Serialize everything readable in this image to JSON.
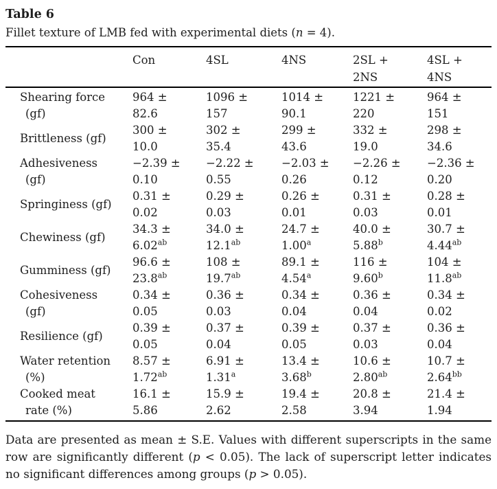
{
  "colors": {
    "background": "#ffffff",
    "text": "#1e1e1e",
    "rule": "#000000"
  },
  "title": "Table 6",
  "caption": {
    "before": "Fillet texture of LMB fed with experimental diets (",
    "variable": "n",
    "after": " = 4)."
  },
  "table": {
    "header_columns": [
      {
        "lines": [
          "Con"
        ]
      },
      {
        "lines": [
          "4SL"
        ]
      },
      {
        "lines": [
          "4NS"
        ]
      },
      {
        "lines": [
          "2SL +",
          "2NS"
        ]
      },
      {
        "lines": [
          "4SL +",
          "4NS"
        ]
      }
    ],
    "rows": [
      {
        "label_lines": [
          "Shearing force",
          "(gf)"
        ],
        "cells": [
          {
            "mean": "964 ±",
            "se": "82.6",
            "sup": ""
          },
          {
            "mean": "1096 ±",
            "se": "157",
            "sup": ""
          },
          {
            "mean": "1014 ±",
            "se": "90.1",
            "sup": ""
          },
          {
            "mean": "1221 ±",
            "se": "220",
            "sup": ""
          },
          {
            "mean": "964 ±",
            "se": "151",
            "sup": ""
          }
        ]
      },
      {
        "label_lines": [
          "Brittleness (gf)"
        ],
        "cells": [
          {
            "mean": "300 ±",
            "se": "10.0",
            "sup": ""
          },
          {
            "mean": "302 ±",
            "se": "35.4",
            "sup": ""
          },
          {
            "mean": "299 ±",
            "se": "43.6",
            "sup": ""
          },
          {
            "mean": "332 ±",
            "se": "19.0",
            "sup": ""
          },
          {
            "mean": "298 ±",
            "se": "34.6",
            "sup": ""
          }
        ]
      },
      {
        "label_lines": [
          "Adhesiveness",
          "(gf)"
        ],
        "cells": [
          {
            "mean": "−2.39 ±",
            "se": "0.10",
            "sup": ""
          },
          {
            "mean": "−2.22 ±",
            "se": "0.55",
            "sup": ""
          },
          {
            "mean": "−2.03 ±",
            "se": "0.26",
            "sup": ""
          },
          {
            "mean": "−2.26 ±",
            "se": "0.12",
            "sup": ""
          },
          {
            "mean": "−2.36 ±",
            "se": "0.20",
            "sup": ""
          }
        ]
      },
      {
        "label_lines": [
          "Springiness (gf)"
        ],
        "cells": [
          {
            "mean": "0.31 ±",
            "se": "0.02",
            "sup": ""
          },
          {
            "mean": "0.29 ±",
            "se": "0.03",
            "sup": ""
          },
          {
            "mean": "0.26 ±",
            "se": "0.01",
            "sup": ""
          },
          {
            "mean": "0.31 ±",
            "se": "0.03",
            "sup": ""
          },
          {
            "mean": "0.28 ±",
            "se": "0.01",
            "sup": ""
          }
        ]
      },
      {
        "label_lines": [
          "Chewiness (gf)"
        ],
        "cells": [
          {
            "mean": "34.3 ±",
            "se": "6.02",
            "sup": "ab"
          },
          {
            "mean": "34.0 ±",
            "se": "12.1",
            "sup": "ab"
          },
          {
            "mean": "24.7 ±",
            "se": "1.00",
            "sup": "a"
          },
          {
            "mean": "40.0 ±",
            "se": "5.88",
            "sup": "b"
          },
          {
            "mean": "30.7 ±",
            "se": "4.44",
            "sup": "ab"
          }
        ]
      },
      {
        "label_lines": [
          "Gumminess (gf)"
        ],
        "cells": [
          {
            "mean": "96.6 ±",
            "se": "23.8",
            "sup": "ab"
          },
          {
            "mean": "108 ±",
            "se": "19.7",
            "sup": "ab"
          },
          {
            "mean": "89.1 ±",
            "se": "4.54",
            "sup": "a"
          },
          {
            "mean": "116 ±",
            "se": "9.60",
            "sup": "b"
          },
          {
            "mean": "104 ±",
            "se": "11.8",
            "sup": "ab"
          }
        ]
      },
      {
        "label_lines": [
          "Cohesiveness",
          "(gf)"
        ],
        "cells": [
          {
            "mean": "0.34 ±",
            "se": "0.05",
            "sup": ""
          },
          {
            "mean": "0.36 ±",
            "se": "0.03",
            "sup": ""
          },
          {
            "mean": "0.34 ±",
            "se": "0.04",
            "sup": ""
          },
          {
            "mean": "0.36 ±",
            "se": "0.04",
            "sup": ""
          },
          {
            "mean": "0.34 ±",
            "se": "0.02",
            "sup": ""
          }
        ]
      },
      {
        "label_lines": [
          "Resilience (gf)"
        ],
        "cells": [
          {
            "mean": "0.39 ±",
            "se": "0.05",
            "sup": ""
          },
          {
            "mean": "0.37 ±",
            "se": "0.04",
            "sup": ""
          },
          {
            "mean": "0.39 ±",
            "se": "0.05",
            "sup": ""
          },
          {
            "mean": "0.37 ±",
            "se": "0.03",
            "sup": ""
          },
          {
            "mean": "0.36 ±",
            "se": "0.04",
            "sup": ""
          }
        ]
      },
      {
        "label_lines": [
          "Water retention",
          "(%)"
        ],
        "cells": [
          {
            "mean": "8.57 ±",
            "se": "1.72",
            "sup": "ab"
          },
          {
            "mean": "6.91 ±",
            "se": "1.31",
            "sup": "a"
          },
          {
            "mean": "13.4 ±",
            "se": "3.68",
            "sup": "b"
          },
          {
            "mean": "10.6 ±",
            "se": "2.80",
            "sup": "ab"
          },
          {
            "mean": "10.7 ±",
            "se": "2.64",
            "sup": "bb"
          }
        ]
      },
      {
        "label_lines": [
          "Cooked meat",
          "rate (%)"
        ],
        "cells": [
          {
            "mean": "16.1 ±",
            "se": "5.86",
            "sup": ""
          },
          {
            "mean": "15.9 ±",
            "se": "2.62",
            "sup": ""
          },
          {
            "mean": "19.4 ±",
            "se": "2.58",
            "sup": ""
          },
          {
            "mean": "20.8 ±",
            "se": "3.94",
            "sup": ""
          },
          {
            "mean": "21.4 ±",
            "se": "1.94",
            "sup": ""
          }
        ]
      }
    ]
  },
  "footnote": {
    "lines": [
      [
        {
          "text": "Data are presented as mean ± S.E. Values with different superscripts in the same",
          "italic": false
        }
      ],
      [
        {
          "text": "row are significantly different (",
          "italic": false
        },
        {
          "text": "p",
          "italic": true
        },
        {
          "text": " < 0.05). The lack of superscript letter indicates",
          "italic": false
        }
      ],
      [
        {
          "text": "no significant differences among groups (",
          "italic": false
        },
        {
          "text": "p",
          "italic": true
        },
        {
          "text": " > 0.05).",
          "italic": false
        }
      ]
    ]
  }
}
